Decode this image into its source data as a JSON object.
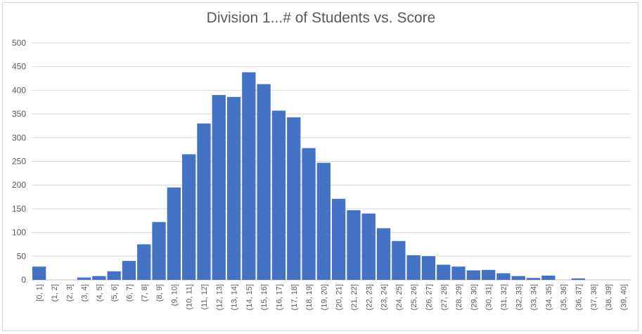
{
  "chart_data": {
    "type": "bar",
    "title": "Division 1...# of Students vs. Score",
    "xlabel": "",
    "ylabel": "",
    "ylim": [
      0,
      500
    ],
    "yticks": [
      0,
      50,
      100,
      150,
      200,
      250,
      300,
      350,
      400,
      450,
      500
    ],
    "grid": true,
    "legend": "none",
    "bar_color": "#4472c4",
    "categories": [
      "[0, 1]",
      "(1, 2]",
      "(2, 3]",
      "(3, 4]",
      "(4, 5]",
      "(5, 6]",
      "(6, 7]",
      "(7, 8]",
      "(8, 9]",
      "(9, 10]",
      "(10, 11]",
      "(11, 12]",
      "(12, 13]",
      "(13, 14]",
      "(14, 15]",
      "(15, 16]",
      "(16, 17]",
      "(17, 18]",
      "(18, 19]",
      "(19, 20]",
      "(20, 21]",
      "(21, 22]",
      "(22, 23]",
      "(23, 24]",
      "(24, 25]",
      "(25, 26]",
      "(26, 27]",
      "(27, 28]",
      "(28, 29]",
      "(29, 30]",
      "(30, 31]",
      "(31, 32]",
      "(32, 33]",
      "(33, 34]",
      "(34, 35]",
      "(35, 36]",
      "(36, 37]",
      "(37, 38]",
      "(38, 39]",
      "(39, 40]"
    ],
    "values": [
      28,
      0,
      0,
      5,
      8,
      18,
      40,
      75,
      122,
      195,
      265,
      330,
      390,
      386,
      438,
      413,
      357,
      343,
      278,
      247,
      171,
      147,
      140,
      109,
      82,
      52,
      50,
      32,
      28,
      20,
      21,
      14,
      8,
      4,
      9,
      0,
      3,
      0,
      0,
      0
    ]
  }
}
